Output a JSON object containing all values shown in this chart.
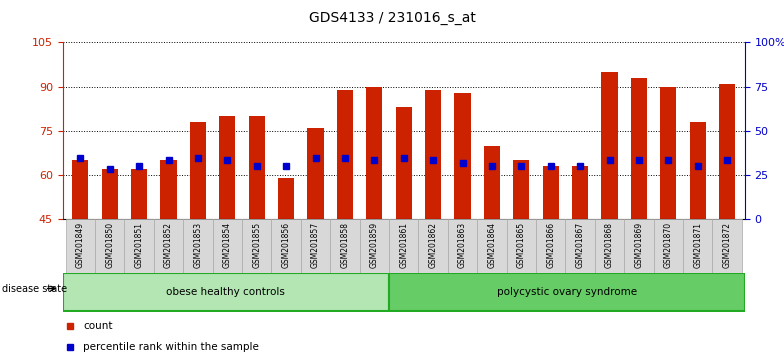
{
  "title": "GDS4133 / 231016_s_at",
  "samples": [
    "GSM201849",
    "GSM201850",
    "GSM201851",
    "GSM201852",
    "GSM201853",
    "GSM201854",
    "GSM201855",
    "GSM201856",
    "GSM201857",
    "GSM201858",
    "GSM201859",
    "GSM201861",
    "GSM201862",
    "GSM201863",
    "GSM201864",
    "GSM201865",
    "GSM201866",
    "GSM201867",
    "GSM201868",
    "GSM201869",
    "GSM201870",
    "GSM201871",
    "GSM201872"
  ],
  "count_values": [
    65,
    62,
    62,
    65,
    78,
    80,
    80,
    59,
    76,
    89,
    90,
    83,
    89,
    88,
    70,
    65,
    63,
    63,
    95,
    93,
    90,
    78,
    91
  ],
  "percentile_values": [
    66,
    62,
    63,
    65,
    66,
    65,
    63,
    63,
    66,
    66,
    65,
    66,
    65,
    64,
    63,
    63,
    63,
    63,
    65,
    65,
    65,
    63,
    65
  ],
  "groups": [
    {
      "label": "obese healthy controls",
      "start": 0,
      "end": 11,
      "color": "#b3e6b3"
    },
    {
      "label": "polycystic ovary syndrome",
      "start": 11,
      "end": 23,
      "color": "#66cc66"
    }
  ],
  "disease_state_label": "disease state",
  "ylim_left": [
    45,
    105
  ],
  "ylim_right": [
    0,
    100
  ],
  "yticks_left": [
    45,
    60,
    75,
    90,
    105
  ],
  "yticks_right": [
    0,
    25,
    50,
    75,
    100
  ],
  "ytick_labels_right": [
    "0",
    "25",
    "50",
    "75",
    "100%"
  ],
  "bar_color": "#cc2200",
  "percentile_color": "#0000cc",
  "bg_color": "#ffffff",
  "plot_bg_color": "#ffffff",
  "grid_color": "#000000",
  "tick_color_left": "#cc2200",
  "tick_color_right": "#0000cc",
  "legend_items": [
    "count",
    "percentile rank within the sample"
  ],
  "legend_colors": [
    "#cc2200",
    "#0000cc"
  ]
}
